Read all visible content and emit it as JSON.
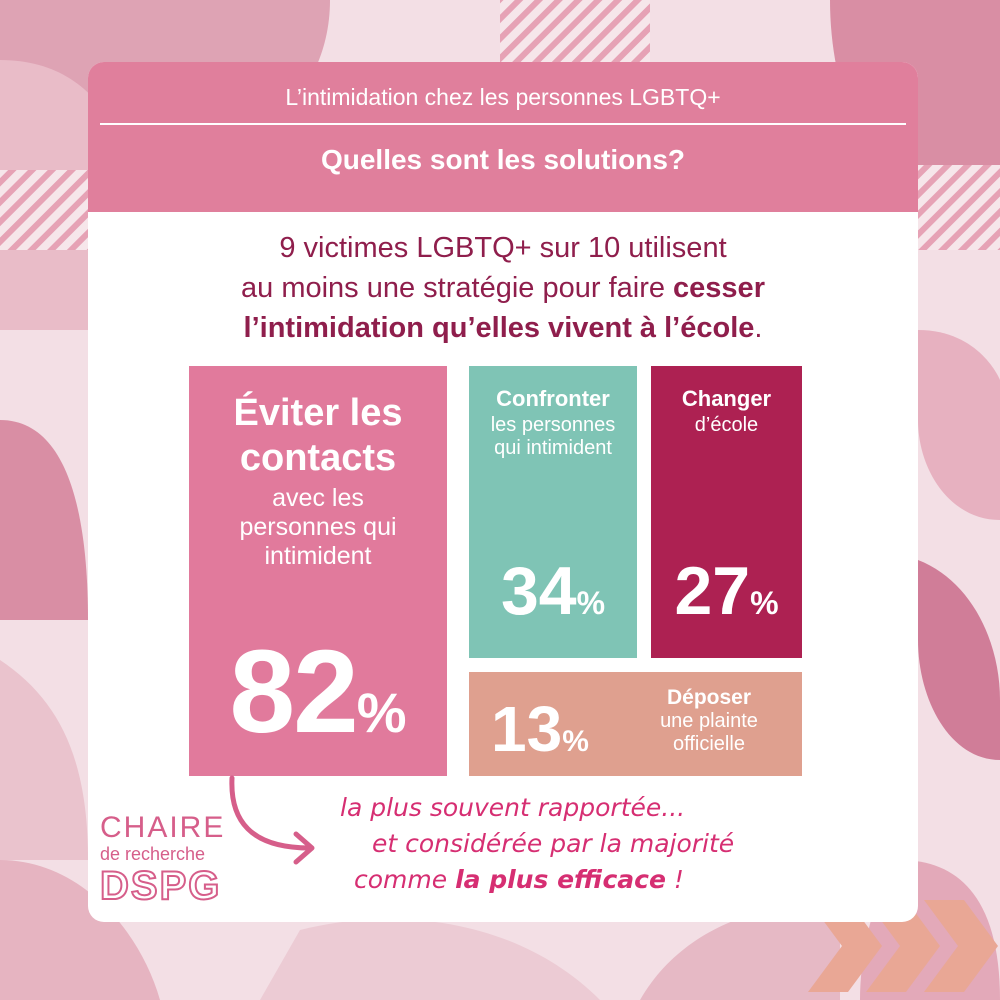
{
  "colors": {
    "banner": "#e07f9c",
    "headline": "#8f1e4c",
    "avoid": "#e17a9c",
    "confront": "#7fc4b5",
    "change": "#ad2152",
    "complaint": "#dfa08f",
    "accent": "#d62e72"
  },
  "banner": {
    "kicker": "L’intimidation chez les personnes LGBTQ+",
    "title": "Quelles sont les solutions?"
  },
  "headline": {
    "line1": "9 victimes LGBTQ+ sur 10 utilisent",
    "line2_a": "au moins une stratégie pour faire ",
    "line2_b": "cesser",
    "line3": "l’intimidation qu’elles vivent à l’école",
    "line3_end": "."
  },
  "chart_data": {
    "type": "bar",
    "categories": [
      "Éviter les contacts",
      "Confronter",
      "Changer",
      "Déposer"
    ],
    "values": [
      82,
      34,
      27,
      13
    ],
    "unit": "%",
    "title": "Quelles sont les solutions?",
    "items": [
      {
        "label_a": "Éviter les",
        "label_b": "contacts",
        "sub1": "avec les",
        "sub2": "personnes qui",
        "sub3": "intimident",
        "value": "82",
        "unit": "%"
      },
      {
        "label": "Confronter",
        "sub1": "les personnes",
        "sub2": "qui intimident",
        "value": "34",
        "unit": "%"
      },
      {
        "label": "Changer",
        "sub1": "d’école",
        "value": "27",
        "unit": "%"
      },
      {
        "label": "Déposer",
        "sub1": "une plainte",
        "sub2": "officielle",
        "value": "13",
        "unit": "%"
      }
    ]
  },
  "note": {
    "line1": "la plus souvent rapportée...",
    "line2": "et considérée par la majorité",
    "line3_a": "comme ",
    "line3_b": "la plus efficace",
    "line3_c": " !"
  },
  "logo": {
    "line1": "CHAIRE",
    "line2": "de recherche",
    "line3": "DSPG"
  }
}
